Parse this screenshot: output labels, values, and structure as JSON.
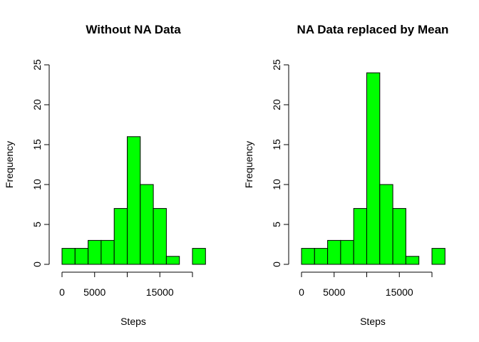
{
  "chart_data": [
    {
      "type": "bar",
      "title": "Without NA Data",
      "xlabel": "Steps",
      "ylabel": "Frequency",
      "bin_edges": [
        0,
        2000,
        4000,
        6000,
        8000,
        10000,
        12000,
        14000,
        16000,
        18000,
        20000,
        22000
      ],
      "values": [
        2,
        2,
        3,
        3,
        7,
        16,
        10,
        7,
        1,
        0,
        2
      ],
      "xticks": [
        0,
        5000,
        15000
      ],
      "xaxis_range": [
        0,
        20000
      ],
      "yticks": [
        0,
        5,
        10,
        15,
        20,
        25
      ],
      "ylim": [
        0,
        25
      ],
      "bar_color": "#00ff00",
      "grid": false
    },
    {
      "type": "bar",
      "title": "NA Data replaced by Mean",
      "xlabel": "Steps",
      "ylabel": "Frequency",
      "bin_edges": [
        0,
        2000,
        4000,
        6000,
        8000,
        10000,
        12000,
        14000,
        16000,
        18000,
        20000,
        22000
      ],
      "values": [
        2,
        2,
        3,
        3,
        7,
        24,
        10,
        7,
        1,
        0,
        2
      ],
      "xticks": [
        0,
        5000,
        15000
      ],
      "xaxis_range": [
        0,
        20000
      ],
      "yticks": [
        0,
        5,
        10,
        15,
        20,
        25
      ],
      "ylim": [
        0,
        25
      ],
      "bar_color": "#00ff00",
      "grid": false
    }
  ]
}
